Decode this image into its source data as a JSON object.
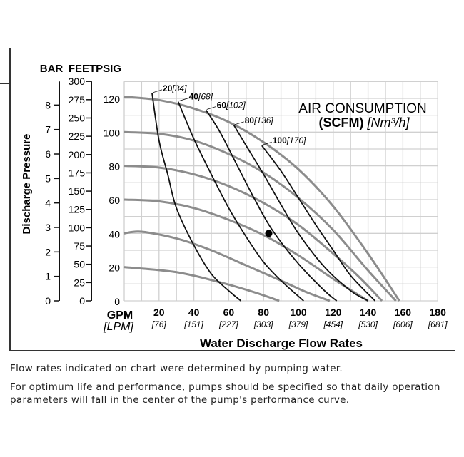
{
  "chart_data": {
    "type": "line",
    "title": "AIR CONSUMPTION",
    "title_unit_bold": "(SCFM)",
    "title_unit_metric": "[Nm³/h]",
    "xlabel": "Water Discharge Flow Rates",
    "x_unit": "GPM",
    "x_unit_metric": "[LPM]",
    "ylabel": "Discharge Pressure",
    "y_units": [
      "BAR",
      "FEET",
      "PSIG"
    ],
    "xlim": [
      0,
      180
    ],
    "ylim": [
      0,
      130
    ],
    "grid": true,
    "x_ticks": [
      {
        "gpm": "20",
        "lpm": "[76]"
      },
      {
        "gpm": "40",
        "lpm": "[151]"
      },
      {
        "gpm": "60",
        "lpm": "[227]"
      },
      {
        "gpm": "80",
        "lpm": "[303]"
      },
      {
        "gpm": "100",
        "lpm": "[379]"
      },
      {
        "gpm": "120",
        "lpm": "[454]"
      },
      {
        "gpm": "140",
        "lpm": "[530]"
      },
      {
        "gpm": "160",
        "lpm": "[606]"
      },
      {
        "gpm": "180",
        "lpm": "[681]"
      }
    ],
    "psig_ticks": [
      "0",
      "20",
      "40",
      "60",
      "80",
      "100",
      "120"
    ],
    "feet_ticks": [
      "0",
      "25",
      "50",
      "75",
      "100",
      "125",
      "150",
      "175",
      "200",
      "225",
      "250",
      "275",
      "300"
    ],
    "bar_ticks": [
      "0",
      "1",
      "2",
      "3",
      "4",
      "5",
      "6",
      "7",
      "8"
    ],
    "performance_curves": [
      {
        "shutoff_psig": 20,
        "points": [
          [
            0,
            20
          ],
          [
            30,
            17
          ],
          [
            55,
            11
          ],
          [
            75,
            5
          ],
          [
            89,
            0
          ]
        ]
      },
      {
        "shutoff_psig": 40,
        "points": [
          [
            0,
            40
          ],
          [
            10,
            41
          ],
          [
            30,
            37
          ],
          [
            50,
            30
          ],
          [
            70,
            21
          ],
          [
            90,
            12
          ],
          [
            105,
            5
          ],
          [
            118,
            0
          ]
        ]
      },
      {
        "shutoff_psig": 60,
        "points": [
          [
            0,
            60
          ],
          [
            20,
            59
          ],
          [
            40,
            55
          ],
          [
            60,
            48
          ],
          [
            80,
            39
          ],
          [
            100,
            27
          ],
          [
            120,
            13
          ],
          [
            140,
            0
          ]
        ]
      },
      {
        "shutoff_psig": 80,
        "points": [
          [
            0,
            80
          ],
          [
            20,
            79
          ],
          [
            40,
            75
          ],
          [
            60,
            68
          ],
          [
            80,
            58
          ],
          [
            100,
            45
          ],
          [
            120,
            28
          ],
          [
            135,
            14
          ],
          [
            148,
            0
          ]
        ]
      },
      {
        "shutoff_psig": 100,
        "points": [
          [
            0,
            100
          ],
          [
            20,
            99
          ],
          [
            40,
            95
          ],
          [
            60,
            87
          ],
          [
            80,
            76
          ],
          [
            100,
            61
          ],
          [
            120,
            42
          ],
          [
            140,
            18
          ],
          [
            156,
            0
          ]
        ]
      },
      {
        "shutoff_psig": 120,
        "points": [
          [
            0,
            121
          ],
          [
            20,
            119
          ],
          [
            40,
            114
          ],
          [
            60,
            106
          ],
          [
            80,
            94
          ],
          [
            100,
            78
          ],
          [
            120,
            56
          ],
          [
            140,
            28
          ],
          [
            158,
            0
          ]
        ]
      }
    ],
    "air_curves": [
      {
        "scfm": "20",
        "nm3h": "[34]",
        "points": [
          [
            16,
            123
          ],
          [
            20,
            95
          ],
          [
            25,
            75
          ],
          [
            30,
            55
          ],
          [
            40,
            33
          ],
          [
            50,
            16
          ],
          [
            60,
            6
          ],
          [
            67,
            0
          ]
        ]
      },
      {
        "scfm": "40",
        "nm3h": "[68]",
        "points": [
          [
            31,
            118
          ],
          [
            40,
            96
          ],
          [
            50,
            75
          ],
          [
            60,
            55
          ],
          [
            70,
            38
          ],
          [
            80,
            23
          ],
          [
            90,
            12
          ],
          [
            103,
            0
          ]
        ]
      },
      {
        "scfm": "60",
        "nm3h": "[102]",
        "points": [
          [
            47,
            113
          ],
          [
            55,
            100
          ],
          [
            65,
            80
          ],
          [
            75,
            60
          ],
          [
            85,
            42
          ],
          [
            100,
            22
          ],
          [
            115,
            6
          ],
          [
            122,
            0
          ]
        ]
      },
      {
        "scfm": "80",
        "nm3h": "[136]",
        "points": [
          [
            63,
            104
          ],
          [
            70,
            92
          ],
          [
            80,
            75
          ],
          [
            90,
            57
          ],
          [
            100,
            40
          ],
          [
            115,
            20
          ],
          [
            130,
            6
          ],
          [
            140,
            0
          ]
        ]
      },
      {
        "scfm": "100",
        "nm3h": "[170]",
        "points": [
          [
            79,
            92
          ],
          [
            90,
            77
          ],
          [
            100,
            61
          ],
          [
            110,
            45
          ],
          [
            120,
            30
          ],
          [
            130,
            15
          ],
          [
            144,
            0
          ]
        ]
      }
    ],
    "example_point": [
      83,
      40
    ],
    "colors": {
      "performance": "#8c8c8c",
      "air": "#111111",
      "grid": "#d0d0d0"
    }
  },
  "notes": {
    "line1": "Flow rates indicated on chart were determined by pumping water.",
    "line2": "For optimum life and performance, pumps should be specified so that daily operation",
    "line3": "parameters will fall in the center of the pump's performance curve."
  }
}
